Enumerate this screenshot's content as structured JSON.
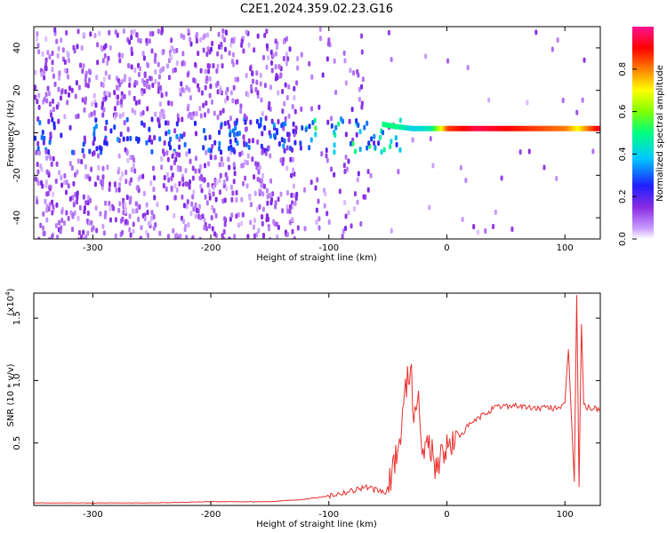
{
  "title": "C2E1.2024.359.02.23.G16",
  "chart_data": [
    {
      "type": "heatmap",
      "title": "C2E1.2024.359.02.23.G16",
      "xlabel": "Height of straight line (km)",
      "ylabel": "Frequency (Hz)",
      "xlim": [
        -350,
        130
      ],
      "ylim": [
        -50,
        50
      ],
      "xticks": [
        -300,
        -200,
        -100,
        0,
        100
      ],
      "yticks": [
        -40,
        -20,
        0,
        20,
        40
      ],
      "colorbar": {
        "label": "Normalized spectral amplitude",
        "range": [
          0,
          1
        ],
        "ticks": [
          0.0,
          0.2,
          0.4,
          0.6,
          0.8
        ],
        "colormap": "white-purple-blue-cyan-green-yellow-red-pink"
      },
      "ridge": {
        "description": "strong narrow line near 2 Hz for heights above about -55 km",
        "points": [
          {
            "x": -55,
            "y": 4,
            "amp": 0.5
          },
          {
            "x": -45,
            "y": 3,
            "amp": 0.5
          },
          {
            "x": -30,
            "y": 2,
            "amp": 0.4
          },
          {
            "x": -15,
            "y": 2,
            "amp": 0.45
          },
          {
            "x": 0,
            "y": 2,
            "amp": 0.85
          },
          {
            "x": 25,
            "y": 2,
            "amp": 0.95
          },
          {
            "x": 50,
            "y": 2,
            "amp": 0.9
          },
          {
            "x": 75,
            "y": 2,
            "amp": 0.85
          },
          {
            "x": 100,
            "y": 2,
            "amp": 0.8
          },
          {
            "x": 110,
            "y": 2,
            "amp": 0.7
          },
          {
            "x": 130,
            "y": 2,
            "amp": 0.95
          }
        ]
      }
    },
    {
      "type": "line",
      "xlabel": "Height of straight line (km)",
      "ylabel": "SNR (10 * v/v)",
      "yscale_label": "(x10",
      "yscale_exp": "4",
      "xlim": [
        -350,
        130
      ],
      "ylim": [
        0,
        1.7
      ],
      "xticks": [
        -300,
        -200,
        -100,
        0,
        100
      ],
      "yticks": [
        0.5,
        1.0,
        1.5
      ],
      "ytick_labels": [
        "0.5",
        "1.0",
        "1.5"
      ],
      "color": "#e8302d",
      "series": [
        {
          "x": [
            -350,
            -300,
            -250,
            -200,
            -150,
            -120,
            -100,
            -80,
            -70,
            -60,
            -50,
            -45,
            -40,
            -35,
            -30,
            -28,
            -25,
            -22,
            -20,
            -15,
            -10,
            -5,
            0,
            5,
            10,
            20,
            30,
            40,
            50,
            60,
            70,
            80,
            90,
            100,
            103,
            106,
            108,
            110,
            112,
            114,
            116,
            120,
            130
          ],
          "y": [
            0.02,
            0.02,
            0.02,
            0.03,
            0.03,
            0.05,
            0.08,
            0.12,
            0.15,
            0.12,
            0.1,
            0.35,
            0.5,
            0.95,
            1.15,
            0.6,
            0.9,
            0.6,
            0.4,
            0.55,
            0.3,
            0.4,
            0.45,
            0.5,
            0.55,
            0.65,
            0.72,
            0.78,
            0.8,
            0.8,
            0.78,
            0.78,
            0.78,
            0.8,
            1.25,
            0.6,
            0.2,
            1.7,
            0.15,
            1.45,
            0.8,
            0.78,
            0.77
          ]
        }
      ]
    }
  ]
}
